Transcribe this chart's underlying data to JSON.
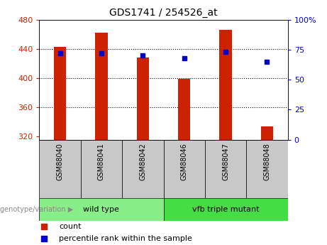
{
  "title": "GDS1741 / 254526_at",
  "samples": [
    "GSM88040",
    "GSM88041",
    "GSM88042",
    "GSM88046",
    "GSM88047",
    "GSM88048"
  ],
  "counts": [
    443,
    462,
    428,
    399,
    466,
    333
  ],
  "percentile_ranks": [
    72,
    72,
    70,
    68,
    73,
    65
  ],
  "ylim_left": [
    315,
    480
  ],
  "ylim_right": [
    0,
    100
  ],
  "yticks_left": [
    320,
    360,
    400,
    440,
    480
  ],
  "yticks_right": [
    0,
    25,
    50,
    75,
    100
  ],
  "bar_color": "#cc2200",
  "dot_color": "#0000cc",
  "bar_bottom": 315,
  "groups": [
    {
      "label": "wild type",
      "color": "#88ee88",
      "start": 0,
      "end": 3
    },
    {
      "label": "vfb triple mutant",
      "color": "#44dd44",
      "start": 3,
      "end": 6
    }
  ],
  "legend_count_color": "#cc2200",
  "legend_dot_color": "#0000cc",
  "left_tick_color": "#cc2200",
  "right_tick_color": "#0000cc",
  "background_label": "#c8c8c8",
  "bar_width": 0.3
}
